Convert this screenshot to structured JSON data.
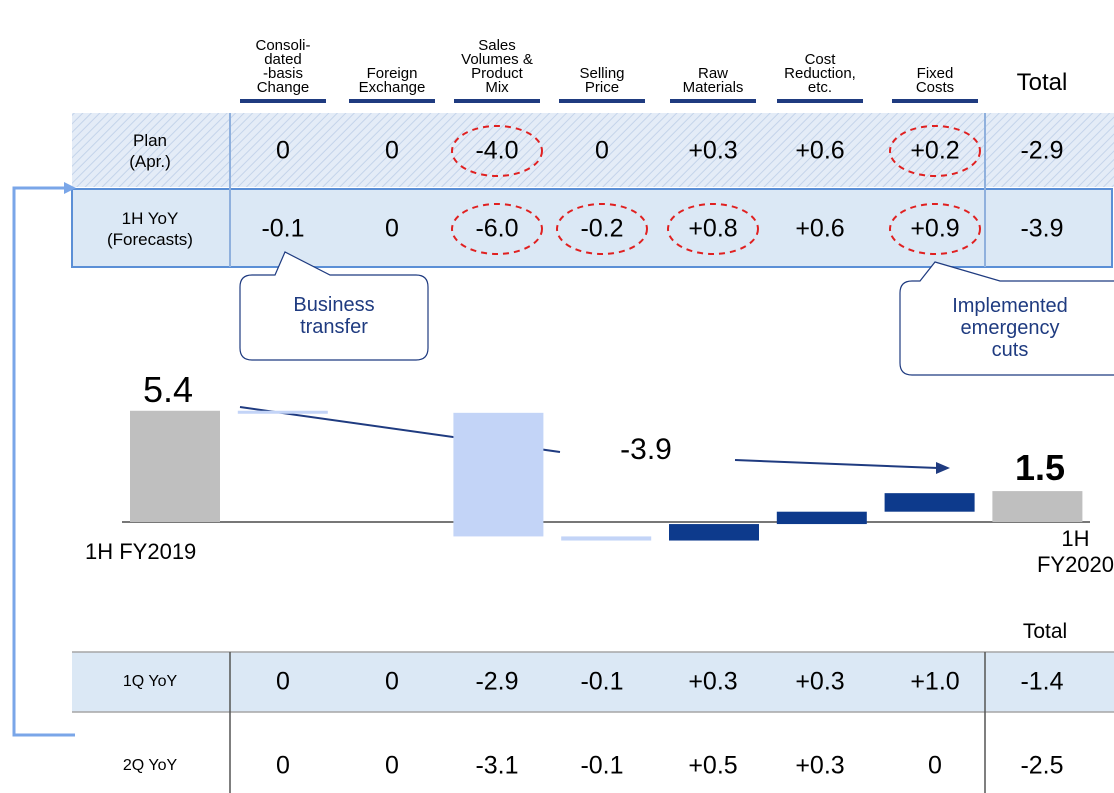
{
  "header_table": {
    "columns": [
      "Consoli-\ndated\n-basis\nChange",
      "Foreign\nExchange",
      "Sales\nVolumes &\nProduct\nMix",
      "Selling\nPrice",
      "Raw\nMaterials",
      "Cost\nReduction,\netc.",
      "Fixed\nCosts",
      "Total"
    ],
    "rows": [
      {
        "label": "Plan\n(Apr.)",
        "cells": [
          "0",
          "0",
          "-4.0",
          "0",
          "+0.3",
          "+0.6",
          "+0.2",
          "-2.9"
        ],
        "circled": [
          false,
          false,
          true,
          false,
          false,
          false,
          true,
          false
        ]
      },
      {
        "label": "1H YoY\n(Forecasts)",
        "cells": [
          "-0.1",
          "0",
          "-6.0",
          "-0.2",
          "+0.8",
          "+0.6",
          "+0.9",
          "-3.9"
        ],
        "circled": [
          false,
          false,
          true,
          true,
          true,
          false,
          true,
          false
        ]
      }
    ]
  },
  "callouts": [
    "Business\ntransfer",
    "Implemented\nemergency cuts"
  ],
  "chart_data": {
    "type": "waterfall",
    "categories": [
      "1H FY2019",
      null,
      null,
      null,
      null,
      null,
      null,
      null,
      "1H FY2020"
    ],
    "values": [
      5.4,
      -0.1,
      0,
      -6.0,
      -0.2,
      0.8,
      0.6,
      0.9,
      1.5
    ],
    "annotation": "-3.9",
    "colors": {
      "total": "#bfbfbf",
      "decrease": "#c3d4f7",
      "increase": "#0d3a8c"
    }
  },
  "quarter_table": {
    "total_header": "Total",
    "rows": [
      {
        "label": "1Q YoY",
        "cells": [
          "0",
          "0",
          "-2.9",
          "-0.1",
          "+0.3",
          "+0.3",
          "+1.0",
          "-1.4"
        ]
      },
      {
        "label": "2Q YoY",
        "cells": [
          "0",
          "0",
          "-3.1",
          "-0.1",
          "+0.5",
          "+0.3",
          "0",
          "-2.5"
        ]
      }
    ]
  }
}
